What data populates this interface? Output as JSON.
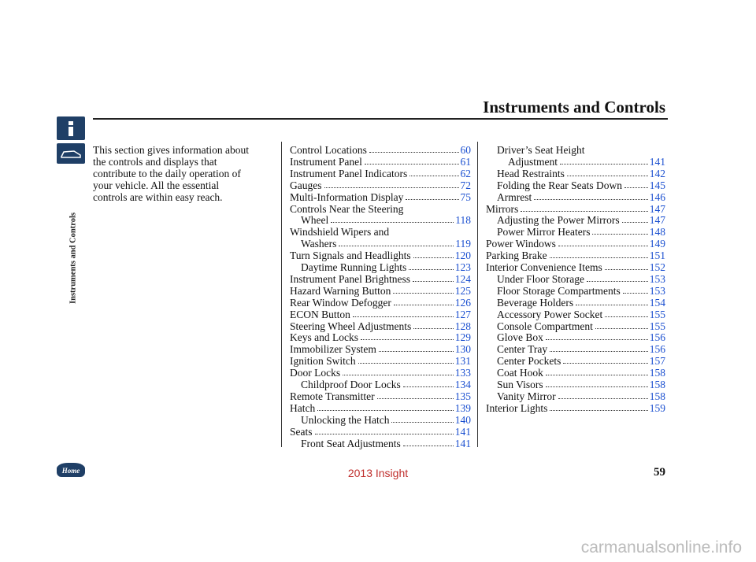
{
  "header": {
    "title": "Instruments and Controls"
  },
  "side_tab": {
    "label": "Instruments and Controls",
    "home": "Home"
  },
  "intro": [
    "This section gives information about",
    "the controls and displays that",
    "contribute to the daily operation of",
    "your vehicle. All the essential",
    "controls are within easy reach."
  ],
  "columns": [
    {
      "items": [
        {
          "lines": [
            "Control Locations"
          ],
          "page": "60"
        },
        {
          "lines": [
            "Instrument Panel"
          ],
          "page": "61"
        },
        {
          "lines": [
            "Instrument Panel Indicators"
          ],
          "page": "62"
        },
        {
          "lines": [
            "Gauges"
          ],
          "page": "72"
        },
        {
          "lines": [
            "Multi-Information Display"
          ],
          "page": "75"
        },
        {
          "lines": [
            "Controls Near the Steering",
            "Wheel"
          ],
          "page": "118"
        },
        {
          "lines": [
            "Windshield Wipers and",
            "Washers"
          ],
          "page": "119"
        },
        {
          "lines": [
            "Turn Signals and Headlights"
          ],
          "page": "120",
          "children": [
            {
              "lines": [
                "Daytime Running Lights"
              ],
              "page": "123"
            }
          ]
        },
        {
          "lines": [
            "Instrument Panel Brightness"
          ],
          "page": "124"
        },
        {
          "lines": [
            "Hazard Warning Button"
          ],
          "page": "125"
        },
        {
          "lines": [
            "Rear Window Defogger"
          ],
          "page": "126"
        },
        {
          "lines": [
            "ECON Button"
          ],
          "page": "127"
        },
        {
          "lines": [
            "Steering Wheel Adjustments"
          ],
          "page": "128"
        },
        {
          "lines": [
            "Keys and Locks"
          ],
          "page": "129"
        },
        {
          "lines": [
            "Immobilizer System"
          ],
          "page": "130"
        },
        {
          "lines": [
            "Ignition Switch"
          ],
          "page": "131"
        },
        {
          "lines": [
            "Door Locks"
          ],
          "page": "133",
          "children": [
            {
              "lines": [
                "Childproof Door Locks"
              ],
              "page": "134"
            }
          ]
        },
        {
          "lines": [
            "Remote Transmitter"
          ],
          "page": "135"
        },
        {
          "lines": [
            "Hatch"
          ],
          "page": "139",
          "children": [
            {
              "lines": [
                "Unlocking the Hatch"
              ],
              "page": "140"
            }
          ]
        },
        {
          "lines": [
            "Seats"
          ],
          "page": "141",
          "children": [
            {
              "lines": [
                "Front Seat Adjustments"
              ],
              "page": "141"
            }
          ]
        }
      ]
    },
    {
      "items": [
        {
          "children": [
            {
              "lines": [
                "Driver’s Seat Height",
                "Adjustment"
              ],
              "page": "141"
            },
            {
              "lines": [
                "Head Restraints"
              ],
              "page": "142"
            },
            {
              "lines": [
                "Folding the Rear Seats Down"
              ],
              "page": "145"
            },
            {
              "lines": [
                "Armrest"
              ],
              "page": "146"
            }
          ]
        },
        {
          "lines": [
            "Mirrors"
          ],
          "page": "147",
          "children": [
            {
              "lines": [
                "Adjusting the Power Mirrors"
              ],
              "page": "147"
            },
            {
              "lines": [
                "Power Mirror Heaters"
              ],
              "page": "148"
            }
          ]
        },
        {
          "lines": [
            "Power Windows"
          ],
          "page": "149"
        },
        {
          "lines": [
            "Parking Brake"
          ],
          "page": "151"
        },
        {
          "lines": [
            "Interior Convenience Items"
          ],
          "page": "152",
          "children": [
            {
              "lines": [
                "Under Floor Storage"
              ],
              "page": "153"
            },
            {
              "lines": [
                "Floor Storage Compartments"
              ],
              "page": "153"
            },
            {
              "lines": [
                "Beverage Holders"
              ],
              "page": "154"
            },
            {
              "lines": [
                "Accessory Power Socket"
              ],
              "page": "155"
            },
            {
              "lines": [
                "Console Compartment"
              ],
              "page": "155"
            },
            {
              "lines": [
                "Glove Box"
              ],
              "page": "156"
            },
            {
              "lines": [
                "Center Tray"
              ],
              "page": "156"
            },
            {
              "lines": [
                "Center Pockets"
              ],
              "page": "157"
            },
            {
              "lines": [
                "Coat Hook"
              ],
              "page": "158"
            },
            {
              "lines": [
                "Sun Visors"
              ],
              "page": "158"
            },
            {
              "lines": [
                "Vanity Mirror"
              ],
              "page": "158"
            }
          ]
        },
        {
          "lines": [
            "Interior Lights"
          ],
          "page": "159"
        }
      ]
    }
  ],
  "footer": {
    "page_number": "59",
    "model": "2013 Insight",
    "watermark": "carmanualsonline.info"
  }
}
